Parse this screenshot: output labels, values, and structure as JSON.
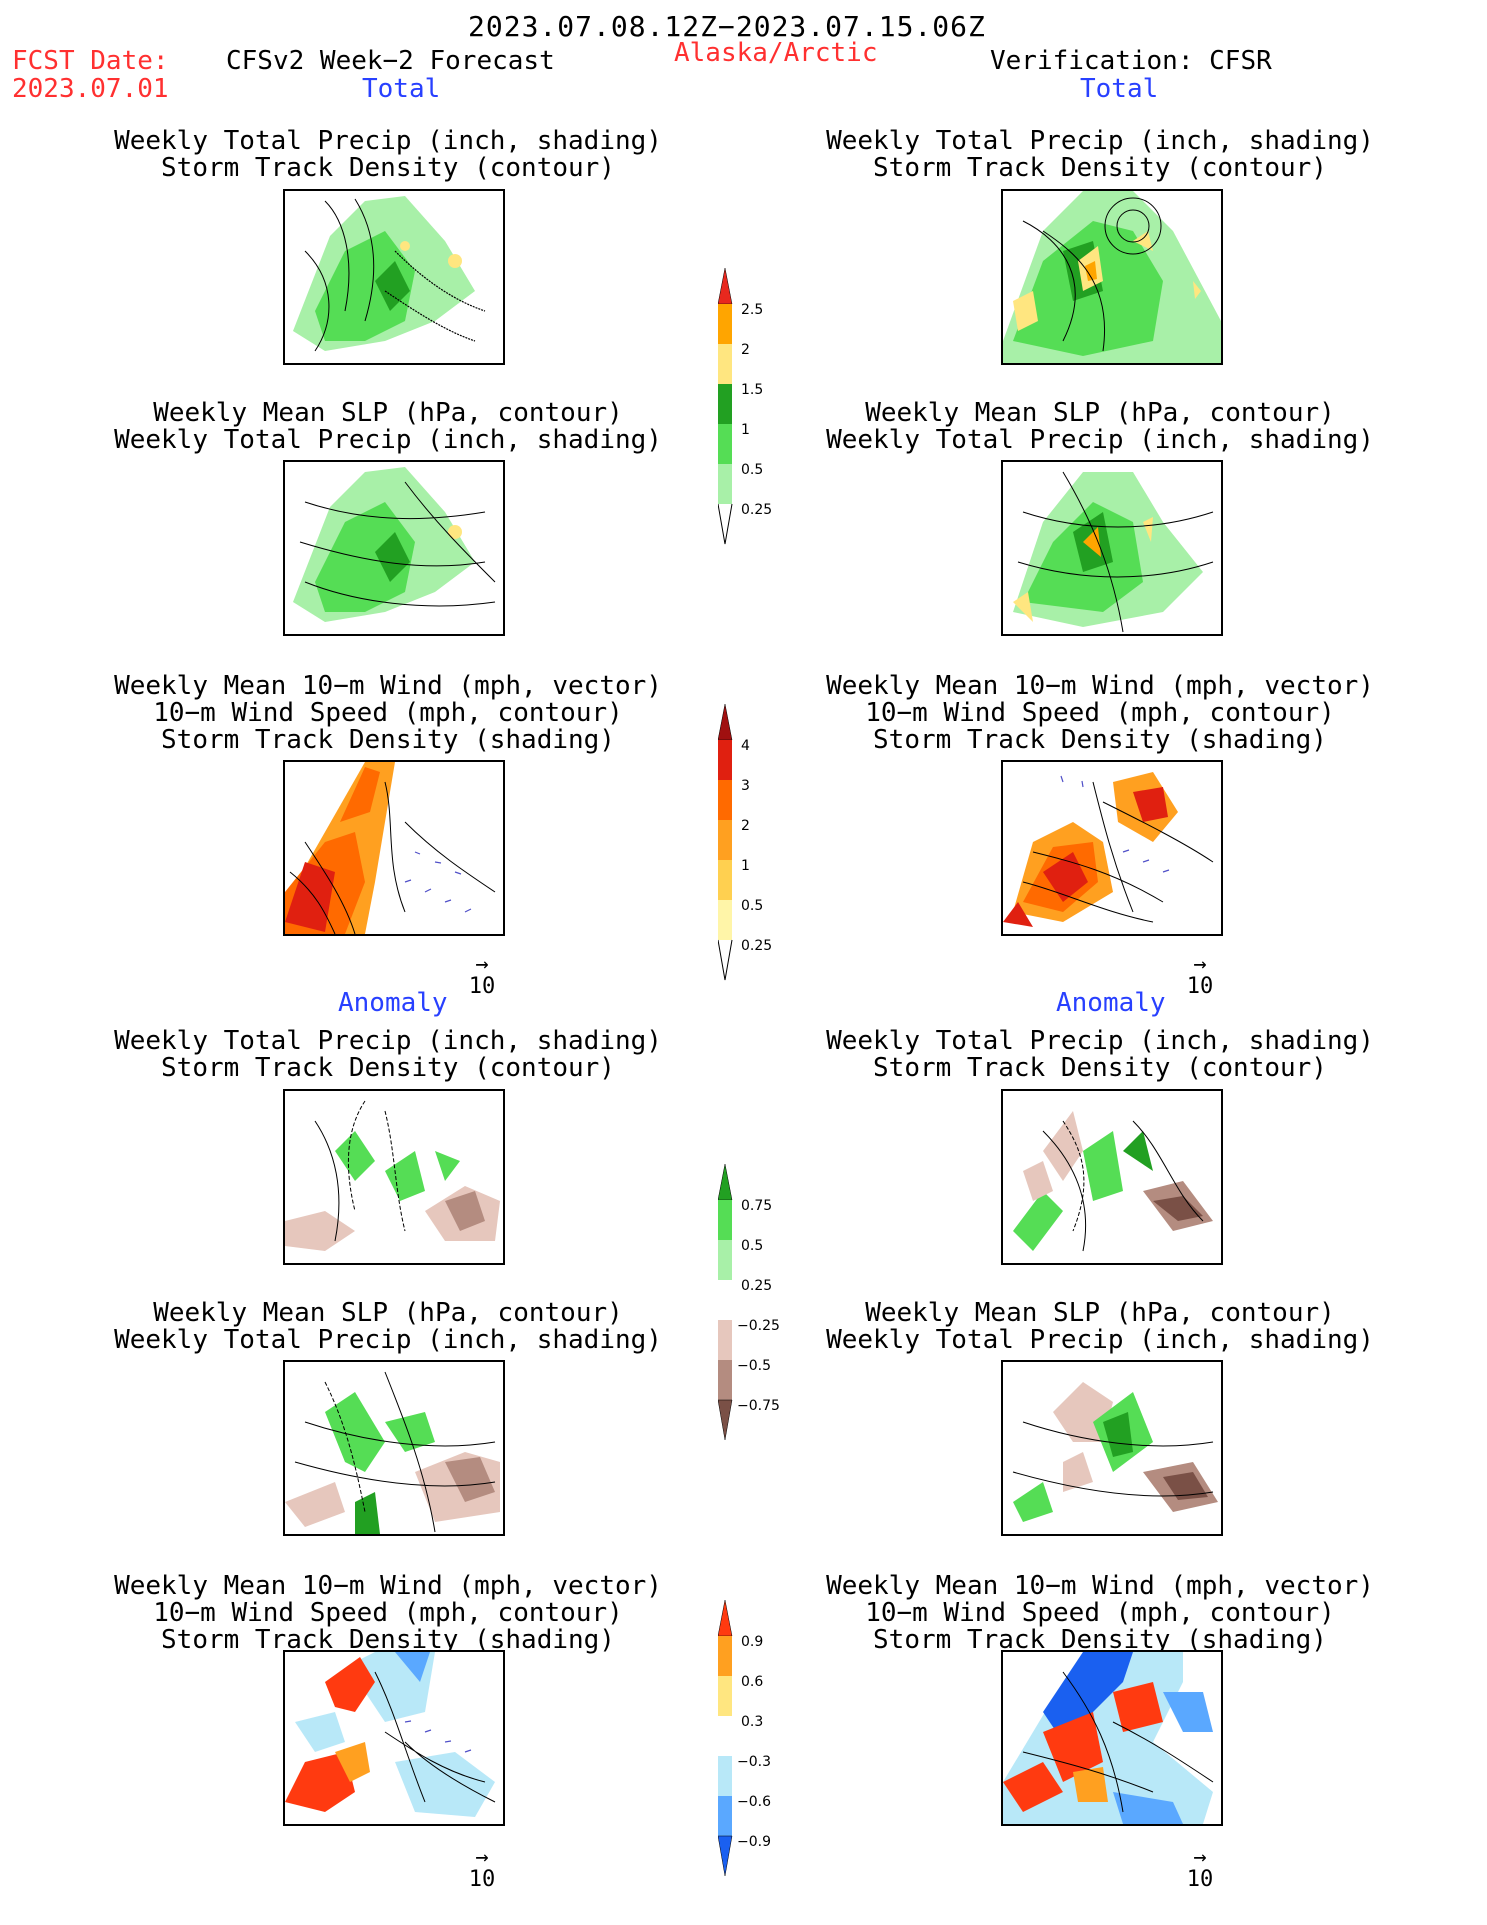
{
  "header": {
    "period": "2023.07.08.12Z−2023.07.15.06Z",
    "fcst_label": "FCST Date:",
    "fcst_date": "2023.07.01",
    "model": "CFSv2 Week−2 Forecast",
    "region": "Alaska/Arctic",
    "verification": "Verification: CFSR"
  },
  "sections": {
    "total": "Total",
    "anomaly": "Anomaly"
  },
  "panel_titles": {
    "precip_storm": [
      "Weekly Total Precip (inch, shading)",
      "Storm Track Density (contour)"
    ],
    "slp_precip": [
      "Weekly Mean SLP (hPa, contour)",
      "Weekly Total Precip (inch, shading)"
    ],
    "wind_storm": [
      "Weekly Mean 10−m Wind (mph, vector)",
      "10−m Wind Speed (mph, contour)",
      "Storm Track Density (shading)"
    ]
  },
  "vector_scale": "10",
  "colorbars": {
    "precip_total": {
      "labels": [
        "2.5",
        "2",
        "1.5",
        "1",
        "0.5",
        "0.25"
      ],
      "colors": [
        "#e8281e",
        "#ffa500",
        "#ffe680",
        "#22a022",
        "#55dd55",
        "#a8f0a8"
      ]
    },
    "storm_total": {
      "labels": [
        "4",
        "3",
        "2",
        "1",
        "0.5",
        "0.25"
      ],
      "colors": [
        "#a01010",
        "#e02010",
        "#ff6a00",
        "#ffa020",
        "#ffd050",
        "#fff5a8"
      ]
    },
    "precip_anom": {
      "labels": [
        "0.75",
        "0.5",
        "0.25",
        "−0.25",
        "−0.5",
        "−0.75"
      ],
      "colors": [
        "#22a022",
        "#55dd55",
        "#a8f0a8",
        "#ffffff",
        "#e6c7bd",
        "#b48c80",
        "#7a5046"
      ]
    },
    "storm_anom": {
      "labels": [
        "0.9",
        "0.6",
        "0.3",
        "−0.3",
        "−0.6",
        "−0.9"
      ],
      "colors": [
        "#ff3a10",
        "#ffa020",
        "#ffe680",
        "#ffffff",
        "#b8e8f8",
        "#5aa8ff",
        "#1a60f0"
      ]
    }
  }
}
